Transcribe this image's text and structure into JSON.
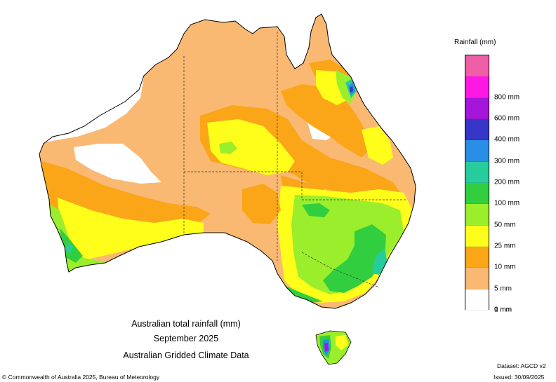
{
  "legend": {
    "title": "Rainfall (mm)",
    "bins": [
      {
        "label": "",
        "color": "#ef5fa8"
      },
      {
        "label": "800 mm",
        "color": "#ff17e3"
      },
      {
        "label": "600 mm",
        "color": "#a416d9"
      },
      {
        "label": "400 mm",
        "color": "#3535c7"
      },
      {
        "label": "300 mm",
        "color": "#2a8ee6"
      },
      {
        "label": "200 mm",
        "color": "#27cc9c"
      },
      {
        "label": "100 mm",
        "color": "#31cf3f"
      },
      {
        "label": "50 mm",
        "color": "#9bee2c"
      },
      {
        "label": "25 mm",
        "color": "#fefe1a"
      },
      {
        "label": "10 mm",
        "color": "#fba618"
      },
      {
        "label": "5 mm",
        "color": "#f9b973"
      },
      {
        "label": "1 mm",
        "color": "#ffffff"
      }
    ],
    "bottom_label": "0 mm"
  },
  "caption": {
    "line1": "Australian total rainfall (mm)",
    "line2": "September 2025",
    "line3": "Australian Gridded Climate Data"
  },
  "footer": {
    "copyright": "© Commonwealth of Australia 2025, Bureau of Meteorology",
    "dataset": "Dataset: AGCD v2",
    "issued": "Issued: 30/09/2025"
  }
}
